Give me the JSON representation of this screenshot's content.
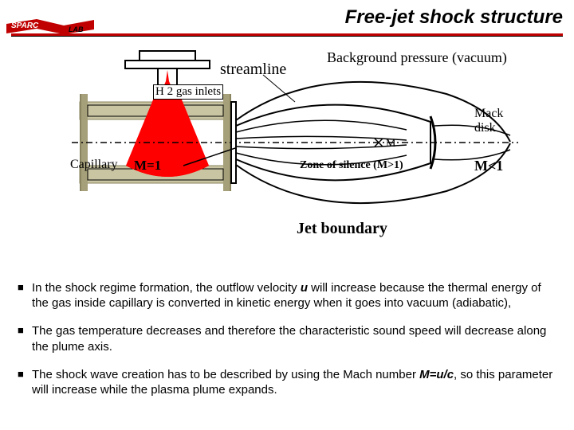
{
  "title": "Free-jet shock structure",
  "logo": {
    "text1": "SPARC",
    "text2": "LAB"
  },
  "labels": {
    "streamline": "streamline",
    "background": "Background pressure (vacuum)",
    "inlets": "H 2 gas inlets",
    "mack1": "Mack",
    "mack2": "disk",
    "capillary": "Capillary",
    "m_eq_1": "M=1",
    "zone": "Zone of silence (M>1)",
    "m_lt_1": "M<1",
    "jet_boundary": "Jet boundary"
  },
  "bullets": [
    "In the shock regime formation, the outflow velocity u will increase because the thermal energy of the gas inside capillary is converted in kinetic energy when it goes into vacuum (adiabatic),",
    "The gas temperature decreases and therefore the characteristic sound speed will decrease along the plume axis.",
    "The shock wave creation has to be described by using the Mach number M=u/c, so this parameter will increase while the plasma plume expands."
  ],
  "colors": {
    "red": "#c00000",
    "khaki": "#a6a07a",
    "khaki_light": "#c9c4a2",
    "olive_dark": "#8a8560",
    "gas_red": "#ff0000",
    "black": "#000000"
  },
  "style": {
    "title_fontsize": 24,
    "label_fontsize": 16,
    "bullet_fontsize": 15
  }
}
